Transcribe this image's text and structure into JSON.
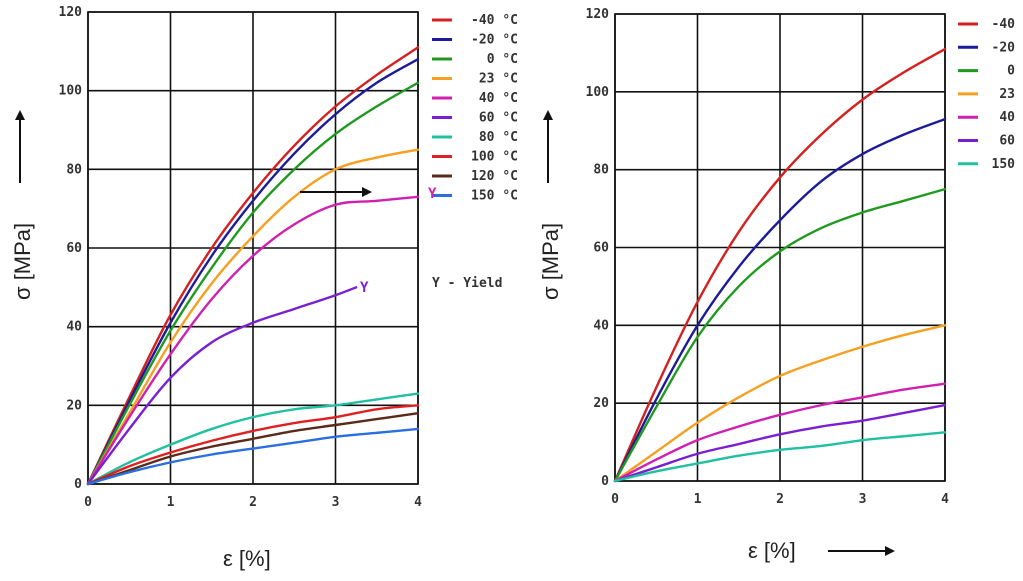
{
  "chart_data": [
    {
      "type": "line",
      "xlabel": "ε [%]",
      "ylabel": "σ [MPa]",
      "xlim": [
        0,
        4
      ],
      "ylim": [
        0,
        120
      ],
      "xticks": [
        "0",
        "1",
        "2",
        "3",
        "4"
      ],
      "yticks": [
        "0",
        "20",
        "40",
        "60",
        "80",
        "100",
        "120"
      ],
      "grid": true,
      "legend_position": "right",
      "legend_note": "Y - Yield",
      "marker_labels": [
        "Y",
        "Y"
      ],
      "series": [
        {
          "name": "-40 °C",
          "color": "#d62020",
          "x": [
            0,
            0.5,
            1,
            1.5,
            2,
            2.5,
            3,
            3.5,
            4
          ],
          "y": [
            0,
            22,
            43,
            60,
            74,
            86,
            96,
            104,
            111
          ]
        },
        {
          "name": "-20 °C",
          "color": "#1c1c9a",
          "x": [
            0,
            0.5,
            1,
            1.5,
            2,
            2.5,
            3,
            3.5,
            4
          ],
          "y": [
            0,
            21,
            41,
            58,
            72,
            84,
            94,
            102,
            108
          ]
        },
        {
          "name": "0 °C",
          "color": "#1f9a1f",
          "x": [
            0,
            0.5,
            1,
            1.5,
            2,
            2.5,
            3,
            3.5,
            4
          ],
          "y": [
            0,
            20,
            39,
            55,
            69,
            80,
            89,
            96,
            102
          ]
        },
        {
          "name": "23 °C",
          "color": "#f5a020",
          "x": [
            0,
            0.5,
            1,
            1.5,
            2,
            2.5,
            3,
            3.5,
            4
          ],
          "y": [
            0,
            18,
            36,
            51,
            63,
            73,
            80,
            83,
            85
          ]
        },
        {
          "name": "40 °C",
          "color": "#d020b0",
          "x": [
            0,
            0.5,
            1,
            1.5,
            2,
            2.5,
            3,
            3.5,
            4
          ],
          "y": [
            0,
            17,
            33,
            47,
            58,
            66,
            71,
            72,
            73
          ]
        },
        {
          "name": "60 °C",
          "color": "#7a20d0",
          "x": [
            0,
            0.5,
            1,
            1.5,
            2,
            2.5,
            3,
            3.25
          ],
          "y": [
            0,
            14,
            27,
            36,
            41,
            44.5,
            48,
            50
          ]
        },
        {
          "name": "80 °C",
          "color": "#20c0a0",
          "x": [
            0,
            0.5,
            1,
            1.5,
            2,
            2.5,
            3,
            3.5,
            4
          ],
          "y": [
            0,
            5.5,
            10,
            14,
            17,
            19,
            20,
            21.5,
            23
          ]
        },
        {
          "name": "100 °C",
          "color": "#e02020",
          "x": [
            0,
            0.5,
            1,
            1.5,
            2,
            2.5,
            3,
            3.5,
            4
          ],
          "y": [
            0,
            4.5,
            8,
            11,
            13.5,
            15.5,
            17,
            19,
            20
          ]
        },
        {
          "name": "120 °C",
          "color": "#5a2a1a",
          "x": [
            0,
            0.5,
            1,
            1.5,
            2,
            2.5,
            3,
            3.5,
            4
          ],
          "y": [
            0,
            3.5,
            7,
            9.5,
            11.5,
            13.5,
            15,
            16.5,
            18
          ]
        },
        {
          "name": "150 °C",
          "color": "#2a6ee0",
          "x": [
            0,
            0.5,
            1,
            1.5,
            2,
            2.5,
            3,
            3.5,
            4
          ],
          "y": [
            0,
            3,
            5.5,
            7.5,
            9,
            10.5,
            12,
            13,
            14
          ]
        }
      ]
    },
    {
      "type": "line",
      "xlabel": "ε [%]",
      "ylabel": "σ [MPa]",
      "xlim": [
        0,
        4
      ],
      "ylim": [
        0,
        120
      ],
      "xticks": [
        "0",
        "1",
        "2",
        "3",
        "4"
      ],
      "yticks": [
        "0",
        "20",
        "40",
        "60",
        "80",
        "100",
        "120"
      ],
      "grid": true,
      "legend_position": "right",
      "series": [
        {
          "name": "-40",
          "color": "#d62020",
          "x": [
            0,
            0.5,
            1,
            1.5,
            2,
            2.5,
            3,
            3.5,
            4
          ],
          "y": [
            0,
            24,
            46,
            64,
            78,
            89,
            98,
            105,
            111
          ]
        },
        {
          "name": "-20",
          "color": "#1c1c9a",
          "x": [
            0,
            0.5,
            1,
            1.5,
            2,
            2.5,
            3,
            3.5,
            4
          ],
          "y": [
            0,
            21,
            40,
            55,
            67,
            77,
            84,
            89,
            93
          ]
        },
        {
          "name": "0",
          "color": "#1f9a1f",
          "x": [
            0,
            0.5,
            1,
            1.5,
            2,
            2.5,
            3,
            3.5,
            4
          ],
          "y": [
            0,
            19,
            37,
            50,
            59,
            65,
            69,
            72,
            75
          ]
        },
        {
          "name": "23",
          "color": "#f5a020",
          "x": [
            0,
            0.5,
            1,
            1.5,
            2,
            2.5,
            3,
            3.5,
            4
          ],
          "y": [
            0,
            7.5,
            15,
            21.5,
            27,
            31,
            34.5,
            37.5,
            40
          ]
        },
        {
          "name": "40",
          "color": "#d020b0",
          "x": [
            0,
            0.5,
            1,
            1.5,
            2,
            2.5,
            3,
            3.5,
            4
          ],
          "y": [
            0,
            5.5,
            10.5,
            14,
            17,
            19.5,
            21.5,
            23.5,
            25
          ]
        },
        {
          "name": "60",
          "color": "#7a20d0",
          "x": [
            0,
            0.5,
            1,
            1.5,
            2,
            2.5,
            3,
            3.5,
            4
          ],
          "y": [
            0,
            3.5,
            7,
            9.5,
            12,
            14,
            15.5,
            17.5,
            19.5
          ]
        },
        {
          "name": "150",
          "color": "#20c0a0",
          "x": [
            0,
            0.5,
            1,
            1.5,
            2,
            2.5,
            3,
            3.5,
            4
          ],
          "y": [
            0,
            2.5,
            4.5,
            6.5,
            8,
            9,
            10.5,
            11.5,
            12.5
          ]
        }
      ]
    }
  ]
}
